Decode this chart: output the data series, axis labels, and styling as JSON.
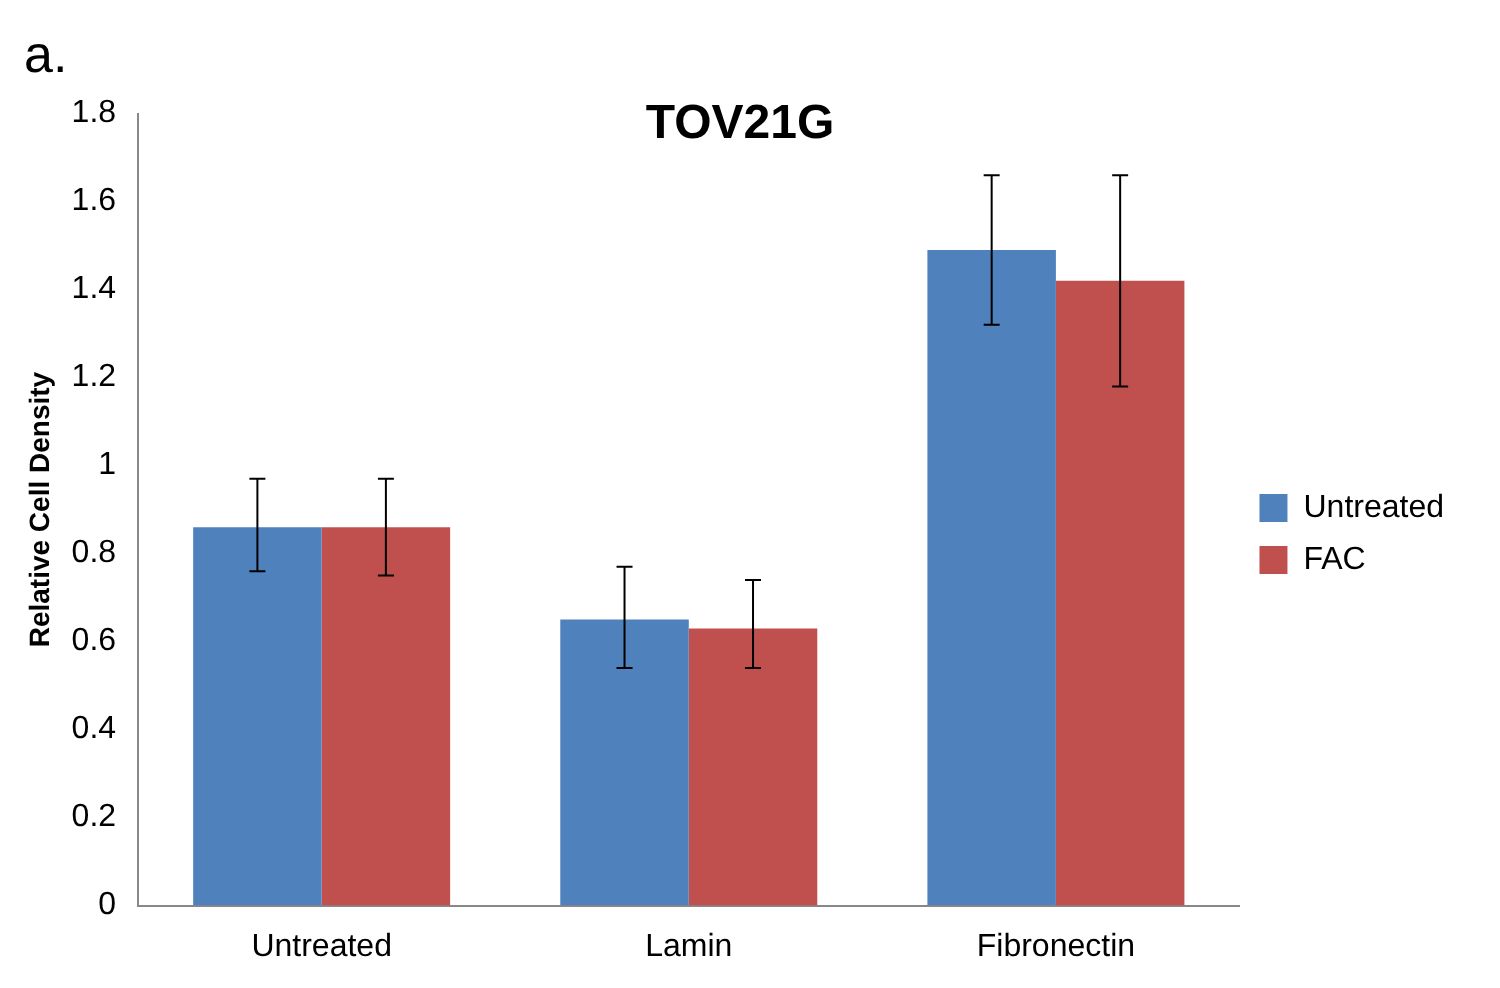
{
  "chart_data": {
    "type": "bar",
    "title": "TOV21G",
    "ylabel": "Relative Cell Density",
    "annotations": [
      "a."
    ],
    "categories": [
      "Untreated",
      "Lamin",
      "Fibronectin"
    ],
    "series": [
      {
        "name": "Untreated",
        "color": "#4f81bd",
        "values": [
          0.86,
          0.65,
          1.49
        ],
        "errors": [
          [
            0.76,
            0.97
          ],
          [
            0.54,
            0.77
          ],
          [
            1.32,
            1.66
          ]
        ]
      },
      {
        "name": "FAC",
        "color": "#c0504d",
        "values": [
          0.86,
          0.63,
          1.42
        ],
        "errors": [
          [
            0.75,
            0.97
          ],
          [
            0.54,
            0.74
          ],
          [
            1.18,
            1.66
          ]
        ]
      }
    ],
    "ylim": [
      0,
      1.8
    ],
    "yticks": [
      0,
      0.2,
      0.4,
      0.6,
      0.8,
      1,
      1.2,
      1.4,
      1.6,
      1.8
    ],
    "grid": false,
    "legend": "right"
  }
}
